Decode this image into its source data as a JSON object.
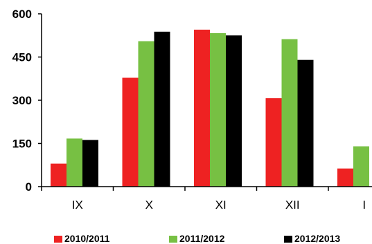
{
  "chart_data": {
    "type": "bar",
    "categories": [
      "IX",
      "X",
      "XI",
      "XII",
      "I"
    ],
    "series": [
      {
        "name": "2010/2011",
        "color": "#ee2222",
        "values": [
          80,
          378,
          545,
          307,
          63
        ]
      },
      {
        "name": "2011/2012",
        "color": "#77c043",
        "values": [
          167,
          505,
          533,
          512,
          140
        ]
      },
      {
        "name": "2012/2013",
        "color": "#000000",
        "values": [
          162,
          538,
          525,
          440,
          null
        ]
      }
    ],
    "yticks": [
      0,
      150,
      300,
      450,
      600
    ],
    "ylim": [
      0,
      600
    ],
    "grid": false,
    "legend_position": "bottom",
    "title": "",
    "xlabel": "",
    "ylabel": ""
  }
}
